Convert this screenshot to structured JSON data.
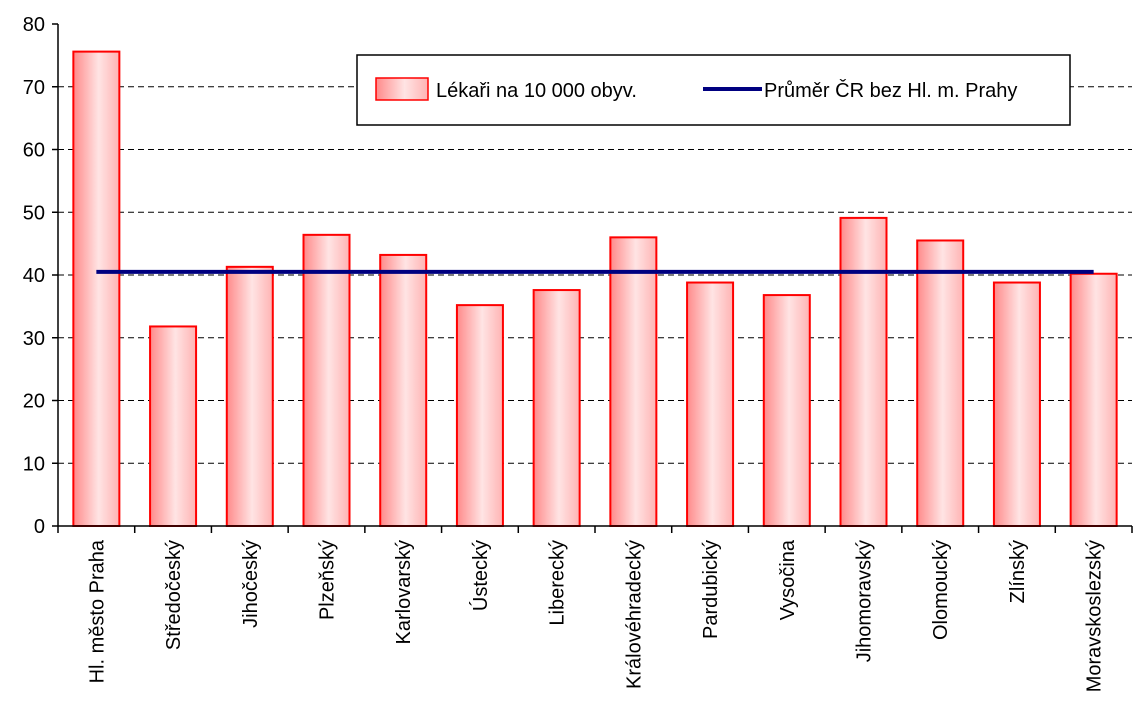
{
  "chart_data": {
    "type": "bar",
    "title": "",
    "xlabel": "",
    "ylabel": "",
    "ylim": [
      0,
      80
    ],
    "yticks": [
      0,
      10,
      20,
      30,
      40,
      50,
      60,
      70,
      80
    ],
    "grid": true,
    "categories": [
      "Hl. město Praha",
      "Středočeský",
      "Jihočeský",
      "Plzeňský",
      "Karlovarský",
      "Ústecký",
      "Liberecký",
      "Královéhradecký",
      "Pardubický",
      "Vysočina",
      "Jihomoravský",
      "Olomoucký",
      "Zlínský",
      "Moravskoslezský"
    ],
    "series": [
      {
        "name": "Lékaři na 10 000 obyv.",
        "type": "bar",
        "values": [
          75.6,
          31.8,
          41.3,
          46.4,
          43.2,
          35.2,
          37.6,
          46.0,
          38.8,
          36.8,
          49.1,
          45.5,
          38.8,
          40.2
        ],
        "color": "#ff0000"
      },
      {
        "name": "Průměr ČR bez Hl. m. Prahy",
        "type": "line",
        "values": [
          40.5,
          40.5,
          40.5,
          40.5,
          40.5,
          40.5,
          40.5,
          40.5,
          40.5,
          40.5,
          40.5,
          40.5,
          40.5,
          40.5
        ],
        "color": "#000080"
      }
    ],
    "legend_position": "top-right"
  }
}
